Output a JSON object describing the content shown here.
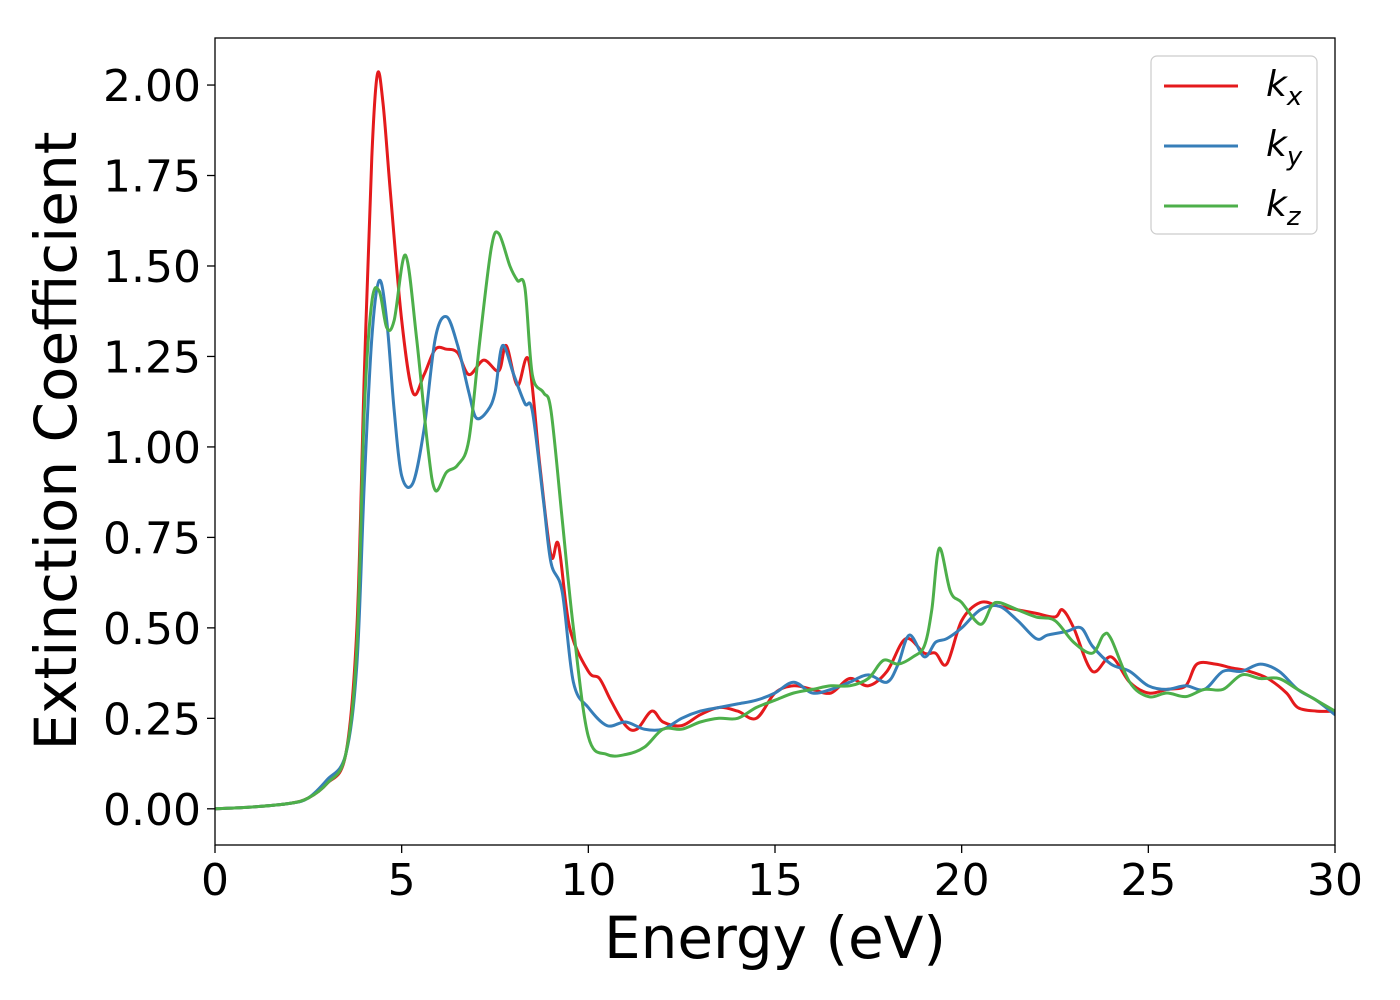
{
  "chart_data": {
    "type": "line",
    "title": "",
    "xlabel": "Energy (eV)",
    "ylabel": "Extinction Coefficient",
    "xlim": [
      0,
      30
    ],
    "ylim": [
      -0.1,
      2.13
    ],
    "xticks": [
      0,
      5,
      10,
      15,
      20,
      25,
      30
    ],
    "xtick_labels": [
      "0",
      "5",
      "10",
      "15",
      "20",
      "25",
      "30"
    ],
    "yticks": [
      0,
      0.25,
      0.5,
      0.75,
      1.0,
      1.25,
      1.5,
      1.75,
      2.0
    ],
    "ytick_labels": [
      "0.00",
      "0.25",
      "0.50",
      "0.75",
      "1.00",
      "1.25",
      "1.50",
      "1.75",
      "2.00"
    ],
    "grid": false,
    "legend_position": "top-right",
    "series": [
      {
        "name": "k_x",
        "label_base": "k",
        "label_sub": "x",
        "color": "#e41a1c",
        "x": [
          0,
          1,
          2,
          2.5,
          3,
          3.5,
          3.8,
          4.0,
          4.2,
          4.35,
          4.5,
          4.7,
          5.0,
          5.3,
          5.6,
          5.9,
          6.2,
          6.5,
          6.8,
          7.2,
          7.6,
          7.8,
          8.1,
          8.4,
          8.7,
          9.0,
          9.2,
          9.5,
          10.0,
          10.3,
          10.6,
          11.0,
          11.3,
          11.7,
          12.0,
          12.5,
          13.0,
          13.5,
          14.0,
          14.5,
          15.0,
          15.5,
          16.0,
          16.5,
          17.0,
          17.5,
          18.0,
          18.5,
          19.0,
          19.3,
          19.6,
          20.0,
          20.5,
          21.0,
          21.5,
          22.0,
          22.5,
          22.7,
          23.0,
          23.5,
          24.0,
          24.5,
          25.0,
          25.5,
          26.0,
          26.3,
          26.8,
          27.2,
          27.7,
          28.2,
          28.7,
          29.0,
          29.5,
          30.0
        ],
        "y": [
          0,
          0.005,
          0.015,
          0.03,
          0.07,
          0.15,
          0.5,
          1.2,
          1.8,
          2.03,
          1.95,
          1.7,
          1.35,
          1.15,
          1.2,
          1.27,
          1.27,
          1.26,
          1.2,
          1.24,
          1.21,
          1.28,
          1.17,
          1.24,
          0.95,
          0.7,
          0.73,
          0.5,
          0.38,
          0.36,
          0.3,
          0.23,
          0.22,
          0.27,
          0.24,
          0.23,
          0.26,
          0.28,
          0.27,
          0.25,
          0.32,
          0.34,
          0.33,
          0.32,
          0.36,
          0.34,
          0.38,
          0.47,
          0.43,
          0.43,
          0.4,
          0.52,
          0.57,
          0.56,
          0.55,
          0.54,
          0.53,
          0.55,
          0.5,
          0.38,
          0.42,
          0.35,
          0.32,
          0.33,
          0.34,
          0.4,
          0.4,
          0.39,
          0.38,
          0.36,
          0.32,
          0.28,
          0.27,
          0.27
        ]
      },
      {
        "name": "k_y",
        "label_base": "k",
        "label_sub": "y",
        "color": "#377eb8",
        "x": [
          0,
          1,
          2,
          2.5,
          3,
          3.5,
          3.8,
          4.0,
          4.2,
          4.4,
          4.6,
          4.8,
          5.0,
          5.3,
          5.6,
          5.9,
          6.2,
          6.5,
          6.8,
          7.0,
          7.3,
          7.5,
          7.7,
          8.0,
          8.3,
          8.5,
          8.8,
          9.0,
          9.3,
          9.6,
          10.0,
          10.5,
          11.0,
          11.5,
          12.0,
          12.5,
          13.0,
          13.5,
          14.0,
          14.5,
          15.0,
          15.5,
          16.0,
          16.5,
          17.0,
          17.5,
          18.0,
          18.3,
          18.6,
          19.0,
          19.3,
          19.6,
          20.0,
          20.5,
          21.0,
          21.5,
          22.0,
          22.3,
          22.8,
          23.2,
          23.5,
          24.0,
          24.5,
          25.0,
          25.5,
          26.0,
          26.5,
          27.0,
          27.5,
          28.0,
          28.5,
          29.0,
          29.5,
          30.0
        ],
        "y": [
          0,
          0.005,
          0.015,
          0.03,
          0.08,
          0.15,
          0.4,
          0.9,
          1.3,
          1.46,
          1.35,
          1.1,
          0.92,
          0.9,
          1.05,
          1.3,
          1.36,
          1.28,
          1.15,
          1.08,
          1.1,
          1.15,
          1.28,
          1.2,
          1.12,
          1.1,
          0.85,
          0.68,
          0.6,
          0.35,
          0.28,
          0.23,
          0.24,
          0.22,
          0.22,
          0.25,
          0.27,
          0.28,
          0.29,
          0.3,
          0.32,
          0.35,
          0.32,
          0.33,
          0.35,
          0.37,
          0.35,
          0.4,
          0.48,
          0.42,
          0.46,
          0.47,
          0.5,
          0.55,
          0.56,
          0.52,
          0.47,
          0.48,
          0.49,
          0.5,
          0.45,
          0.4,
          0.38,
          0.34,
          0.33,
          0.34,
          0.33,
          0.38,
          0.38,
          0.4,
          0.38,
          0.33,
          0.3,
          0.26
        ]
      },
      {
        "name": "k_z",
        "label_base": "k",
        "label_sub": "z",
        "color": "#4daf4a",
        "x": [
          0,
          1,
          2,
          2.5,
          3,
          3.5,
          3.8,
          4.0,
          4.2,
          4.4,
          4.6,
          4.8,
          5.1,
          5.4,
          5.7,
          5.9,
          6.2,
          6.5,
          6.8,
          7.1,
          7.4,
          7.6,
          7.9,
          8.1,
          8.3,
          8.5,
          8.8,
          9.0,
          9.3,
          9.6,
          10.0,
          10.5,
          11.0,
          11.5,
          12.0,
          12.5,
          13.0,
          13.5,
          14.0,
          14.5,
          15.0,
          15.5,
          16.0,
          16.5,
          17.0,
          17.5,
          17.9,
          18.3,
          18.7,
          19.0,
          19.2,
          19.4,
          19.7,
          20.0,
          20.5,
          20.8,
          21.0,
          21.5,
          22.0,
          22.5,
          23.0,
          23.5,
          23.8,
          24.0,
          24.5,
          25.0,
          25.5,
          26.0,
          26.5,
          27.0,
          27.5,
          28.0,
          28.5,
          29.0,
          29.5,
          30.0
        ],
        "y": [
          0,
          0.005,
          0.015,
          0.03,
          0.07,
          0.15,
          0.45,
          1.1,
          1.4,
          1.43,
          1.33,
          1.35,
          1.53,
          1.3,
          1.0,
          0.88,
          0.93,
          0.95,
          1.02,
          1.3,
          1.55,
          1.59,
          1.5,
          1.46,
          1.44,
          1.2,
          1.15,
          1.1,
          0.8,
          0.5,
          0.2,
          0.15,
          0.15,
          0.17,
          0.22,
          0.22,
          0.24,
          0.25,
          0.25,
          0.28,
          0.3,
          0.32,
          0.33,
          0.34,
          0.34,
          0.36,
          0.41,
          0.4,
          0.42,
          0.45,
          0.55,
          0.72,
          0.6,
          0.57,
          0.51,
          0.56,
          0.57,
          0.55,
          0.53,
          0.52,
          0.46,
          0.43,
          0.48,
          0.47,
          0.35,
          0.31,
          0.32,
          0.31,
          0.33,
          0.33,
          0.37,
          0.36,
          0.36,
          0.33,
          0.3,
          0.27
        ]
      }
    ]
  }
}
